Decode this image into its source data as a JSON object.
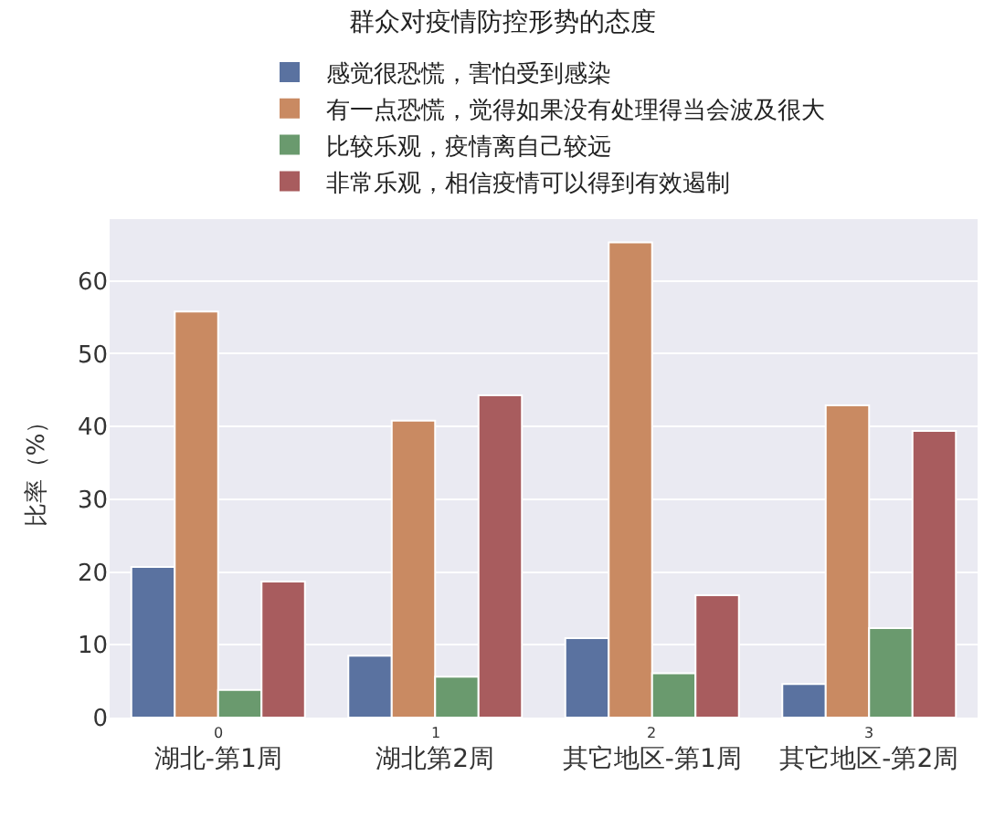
{
  "chart_data": {
    "type": "bar",
    "title": "群众对疫情防控形势的态度",
    "ylabel": "比率（%）",
    "categories": [
      "湖北-第1周",
      "湖北第2周",
      "其它地区-第1周",
      "其它地区-第2周"
    ],
    "series": [
      {
        "name": "感觉很恐慌，害怕受到感染",
        "color": "#5a72a0",
        "values": [
          20.7,
          8.5,
          10.9,
          4.6
        ]
      },
      {
        "name": "有一点恐慌，觉得如果没有处理得当会波及很大",
        "color": "#c98a62",
        "values": [
          55.8,
          40.8,
          65.3,
          42.9
        ]
      },
      {
        "name": "比较乐观，疫情离自己较远",
        "color": "#6a9a6e",
        "values": [
          3.8,
          5.6,
          6.1,
          12.3
        ]
      },
      {
        "name": "非常乐观，相信疫情可以得到有效遏制",
        "color": "#a85c5e",
        "values": [
          18.7,
          44.3,
          16.8,
          39.4
        ]
      }
    ],
    "annotations": [
      "0",
      "1",
      "2",
      "3"
    ],
    "ylim": [
      0,
      68.5
    ],
    "yticks": [
      0,
      10,
      20,
      30,
      40,
      50,
      60
    ],
    "grid": "y",
    "legend": "top"
  }
}
